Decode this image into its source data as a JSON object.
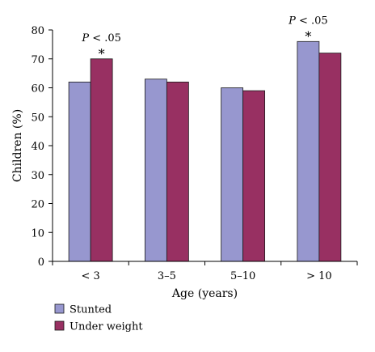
{
  "chart_data": {
    "type": "bar",
    "title": "",
    "xlabel": "Age (years)",
    "ylabel": "Children (%)",
    "ylim": [
      0,
      80
    ],
    "yticks": [
      0,
      10,
      20,
      30,
      40,
      50,
      60,
      70,
      80
    ],
    "grid": false,
    "legend_position": "bottom-left",
    "categories": [
      "< 3",
      "3–5",
      "5–10",
      "> 10"
    ],
    "series": [
      {
        "name": "Stunted",
        "color": "#9797cf",
        "values": [
          62,
          63,
          60,
          76
        ]
      },
      {
        "name": "Under weight",
        "color": "#983062",
        "values": [
          70,
          62,
          59,
          72
        ]
      }
    ],
    "annotations": [
      {
        "category": "< 3",
        "series": "Under weight",
        "p_prefix": "P",
        "p_suffix": " < .05",
        "star": "*"
      },
      {
        "category": "> 10",
        "series": "Stunted",
        "p_prefix": "P",
        "p_suffix": " < .05",
        "star": "*"
      }
    ]
  }
}
